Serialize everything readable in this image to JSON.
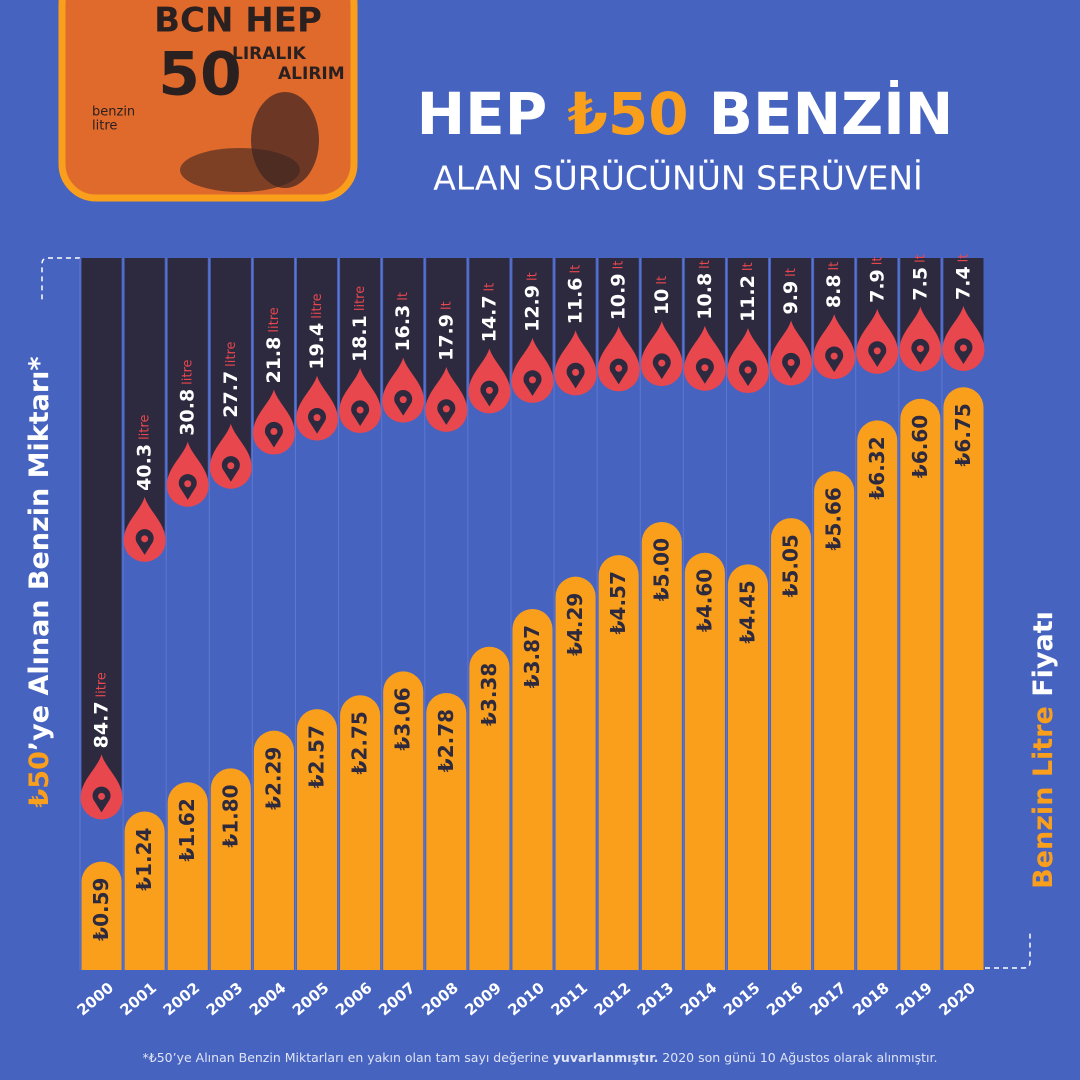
{
  "header": {
    "title_before": "HEP",
    "title_highlight": "₺50",
    "title_after": "BENZİN",
    "subtitle": "ALAN SÜRÜCÜNÜN SERÜVENİ"
  },
  "photo": {
    "stencil_top": "BCN HEP",
    "stencil_number": "50",
    "stencil_line1": "LIRALIK",
    "stencil_line2": "ALIRIM",
    "logo_line1": "benzin",
    "logo_line2": "litre"
  },
  "chart_data": {
    "type": "bar",
    "categories": [
      "2000",
      "2001",
      "2002",
      "2003",
      "2004",
      "2005",
      "2006",
      "2007",
      "2008",
      "2009",
      "2010",
      "2011",
      "2012",
      "2013",
      "2014",
      "2015",
      "2016",
      "2017",
      "2018",
      "2019",
      "2020"
    ],
    "y_label_highlight": "₺50",
    "y_label_rest": "’ye Alınan Benzin Miktarı*",
    "y2_label_highlight": "Benzin Litre",
    "y2_label_rest": "Fiyatı",
    "series": [
      {
        "color": "#f99f1c",
        "values": [
          0.59,
          1.24,
          1.62,
          1.8,
          2.29,
          2.57,
          2.75,
          3.06,
          2.78,
          3.38,
          3.87,
          4.29,
          4.57,
          5.0,
          4.6,
          4.45,
          5.05,
          5.66,
          6.32,
          6.6,
          6.75
        ],
        "value_labels": [
          "₺0.59",
          "₺1.24",
          "₺1.62",
          "₺1.80",
          "₺2.29",
          "₺2.57",
          "₺2.75",
          "₺3.06",
          "₺2.78",
          "₺3.38",
          "₺3.87",
          "₺4.29",
          "₺4.57",
          "₺5.00",
          "₺4.60",
          "₺4.45",
          "₺5.05",
          "₺5.66",
          "₺6.32",
          "₺6.60",
          "₺6.75"
        ]
      },
      {
        "color": "#e8474e",
        "values": [
          84.7,
          40.3,
          30.8,
          27.7,
          21.8,
          19.4,
          18.1,
          16.3,
          17.9,
          14.7,
          12.9,
          11.6,
          10.9,
          10,
          10.8,
          11.2,
          9.9,
          8.8,
          7.9,
          7.5,
          7.4
        ],
        "units": [
          "litre",
          "litre",
          "litre",
          "litre",
          "litre",
          "litre",
          "litre",
          "lt",
          "lt",
          "lt",
          "lt",
          "lt",
          "lt",
          "lt",
          "lt",
          "lt",
          "lt",
          "lt",
          "lt",
          "lt",
          "lt"
        ]
      }
    ]
  },
  "footnote": {
    "before": "*₺50’ye Alınan Benzin Miktarları en yakın olan tam sayı değerine ",
    "bold": "yuvarlanmıştır.",
    "after": " 2020 son günü 10 Ağustos olarak alınmıştır."
  }
}
